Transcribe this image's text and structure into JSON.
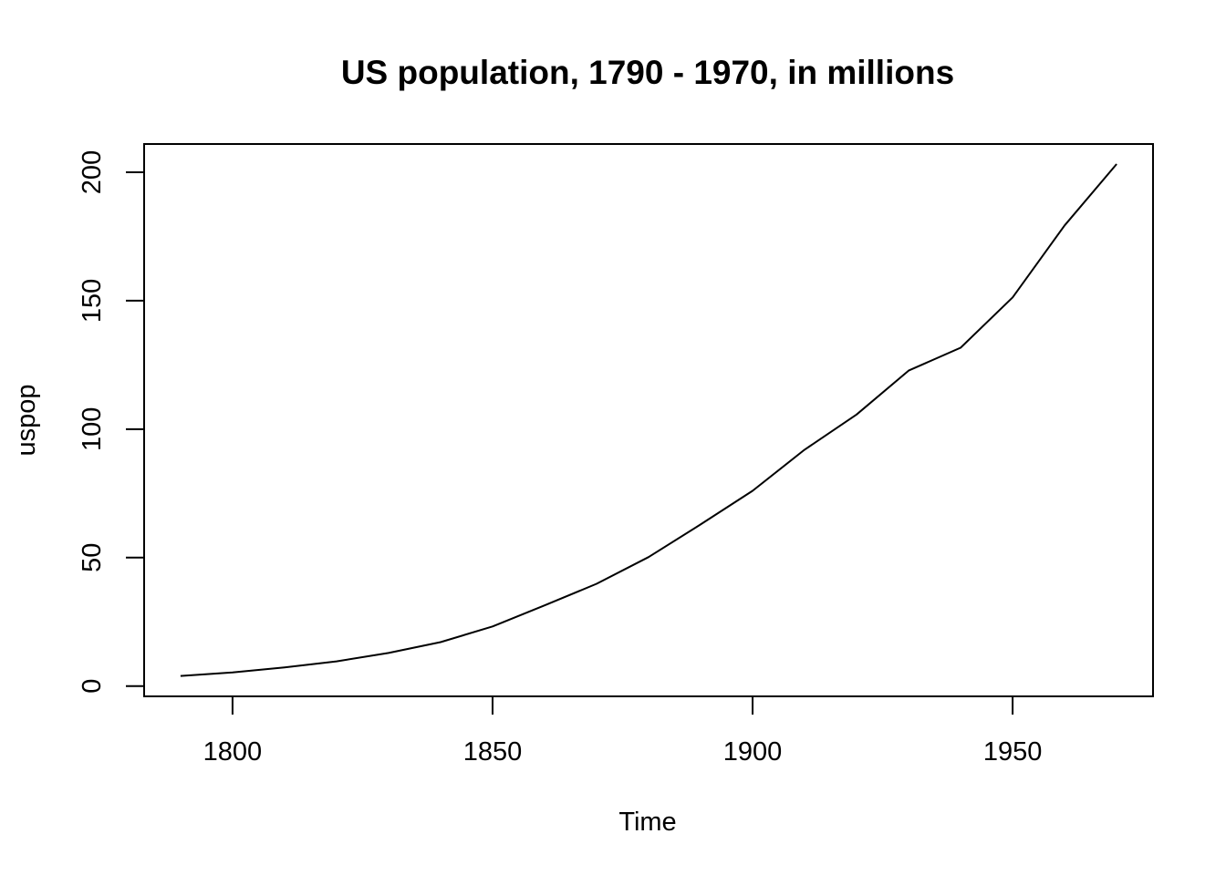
{
  "chart_data": {
    "type": "line",
    "title": "US population, 1790 - 1970, in millions",
    "xlabel": "Time",
    "ylabel": "uspop",
    "xlim": [
      1783,
      1977
    ],
    "ylim": [
      -4,
      211
    ],
    "xticks": [
      1800,
      1850,
      1900,
      1950
    ],
    "yticks": [
      0,
      50,
      100,
      150,
      200
    ],
    "grid": false,
    "legend": "none",
    "line_color": "#000000",
    "series": [
      {
        "x": [
          1790,
          1800,
          1810,
          1820,
          1830,
          1840,
          1850,
          1860,
          1870,
          1880,
          1890,
          1900,
          1910,
          1920,
          1930,
          1940,
          1950,
          1960,
          1970
        ],
        "values": [
          3.93,
          5.31,
          7.24,
          9.64,
          12.9,
          17.1,
          23.2,
          31.4,
          39.8,
          50.2,
          62.9,
          76.0,
          92.0,
          105.7,
          122.8,
          131.7,
          151.3,
          179.3,
          203.2
        ]
      }
    ]
  }
}
